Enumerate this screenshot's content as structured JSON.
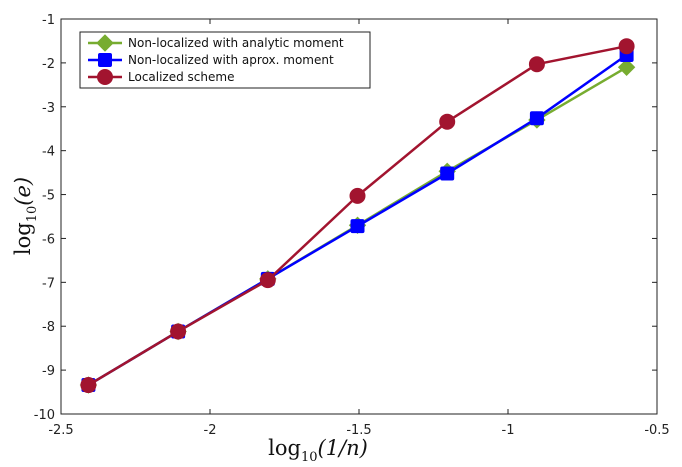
{
  "chart_data": {
    "type": "line",
    "xlabel": {
      "base": "log",
      "sub": "10",
      "arg": "(1/n)"
    },
    "ylabel": {
      "base": "log",
      "sub": "10",
      "arg": "(e)"
    },
    "xlim": [
      -2.5,
      -0.5
    ],
    "ylim": [
      -10,
      -1
    ],
    "xticks": [
      -2.5,
      -2,
      -1.5,
      -1,
      -0.5
    ],
    "xtick_labels": [
      "-2.5",
      "-2",
      "-1.5",
      "-1",
      "-0.5"
    ],
    "yticks": [
      -10,
      -9,
      -8,
      -7,
      -6,
      -5,
      -4,
      -3,
      -2,
      -1
    ],
    "ytick_labels": [
      "-10",
      "-9",
      "-8",
      "-7",
      "-6",
      "-5",
      "-4",
      "-3",
      "-2",
      "-1"
    ],
    "grid": false,
    "legend_position": "top-left",
    "x": [
      -2.408,
      -2.107,
      -1.806,
      -1.505,
      -1.204,
      -0.903,
      -0.602
    ],
    "series": [
      {
        "name": "Non-localized with analytic moment",
        "color": "#77ac30",
        "marker": "diamond",
        "values": [
          -9.34,
          -8.12,
          -6.92,
          -5.7,
          -4.47,
          -3.3,
          -2.1
        ]
      },
      {
        "name": "Non-localized with aprox. moment",
        "color": "#0000ff",
        "marker": "square",
        "values": [
          -9.34,
          -8.12,
          -6.92,
          -5.72,
          -4.52,
          -3.26,
          -1.82
        ]
      },
      {
        "name": "Localized scheme",
        "color": "#a2142f",
        "marker": "circle",
        "values": [
          -9.34,
          -8.12,
          -6.95,
          -5.03,
          -3.34,
          -2.03,
          -1.62
        ]
      }
    ]
  }
}
